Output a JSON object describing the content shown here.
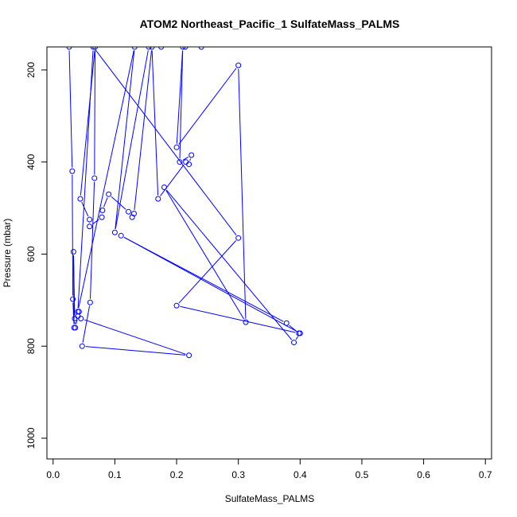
{
  "chart_data": {
    "type": "line",
    "title": "ATOM2 Northeast_Pacific_1 SulfateMass_PALMS",
    "xlabel": "SulfateMass_PALMS",
    "ylabel": "Pressure (mbar)",
    "xlim": [
      -0.01,
      0.71
    ],
    "ylim": [
      1045,
      150
    ],
    "y_reversed": true,
    "grid": false,
    "series_color": "#0000ff",
    "xticks": [
      {
        "value": 0.0,
        "label": "0.0"
      },
      {
        "value": 0.1,
        "label": "0.1"
      },
      {
        "value": 0.2,
        "label": "0.2"
      },
      {
        "value": 0.3,
        "label": "0.3"
      },
      {
        "value": 0.4,
        "label": "0.4"
      },
      {
        "value": 0.5,
        "label": "0.5"
      },
      {
        "value": 0.6,
        "label": "0.6"
      },
      {
        "value": 0.7,
        "label": "0.7"
      }
    ],
    "yticks": [
      {
        "value": 200,
        "label": "200"
      },
      {
        "value": 400,
        "label": "400"
      },
      {
        "value": 600,
        "label": "600"
      },
      {
        "value": 800,
        "label": "800"
      },
      {
        "value": 1000,
        "label": "1000"
      }
    ],
    "series": [
      {
        "x": [
          0.026,
          0.031,
          0.032,
          0.034,
          0.033,
          0.035,
          0.036,
          0.04,
          0.042,
          0.045,
          0.22,
          0.047,
          0.06,
          0.067,
          0.068,
          0.044,
          0.059,
          0.059,
          0.079,
          0.08,
          0.09,
          0.122,
          0.128,
          0.131,
          0.16,
          0.17,
          0.215,
          0.22,
          0.224,
          0.205,
          0.21,
          0.2,
          0.3,
          0.312,
          0.18,
          0.39,
          0.4,
          0.11,
          0.378,
          0.398,
          0.2,
          0.3,
          0.065,
          0.04,
          0.132,
          0.1,
          0.155,
          0.175,
          0.214,
          0.24
        ],
        "y": [
          150,
          420,
          698,
          760,
          595,
          740,
          760,
          735,
          725,
          740,
          820,
          800,
          705,
          435,
          150,
          480,
          525,
          540,
          520,
          505,
          470,
          508,
          520,
          512,
          150,
          480,
          400,
          405,
          385,
          400,
          150,
          368,
          190,
          748,
          455,
          792,
          772,
          560,
          750,
          772,
          712,
          565,
          150,
          725,
          150,
          553,
          150,
          150,
          150,
          150
        ]
      }
    ]
  }
}
